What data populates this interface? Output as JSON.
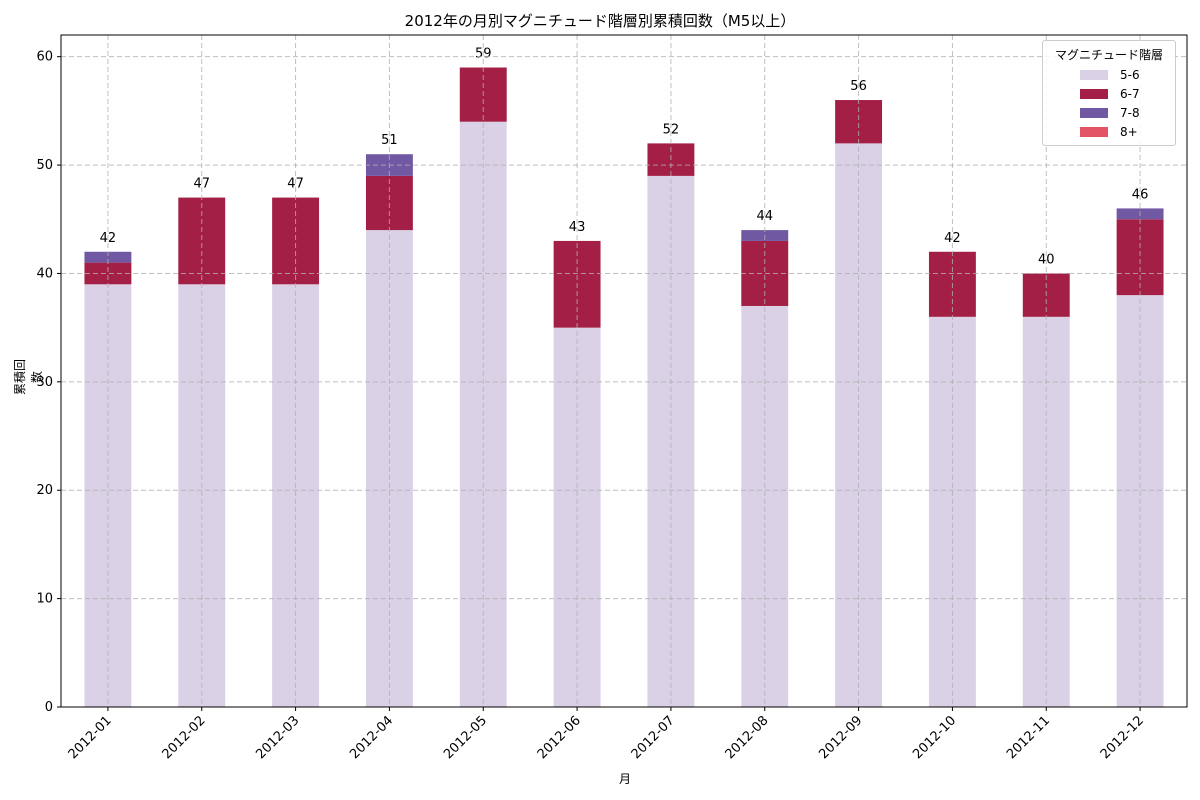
{
  "chart_data": {
    "type": "bar",
    "stacked": true,
    "title": "2012年の月別マグニチュード階層別累積回数（M5以上）",
    "xlabel": "月",
    "ylabel": "累積回数",
    "ylim": [
      0,
      62
    ],
    "yticks": [
      0,
      10,
      20,
      30,
      40,
      50,
      60
    ],
    "grid": true,
    "legend_title": "マグニチュード階層",
    "legend_position": "upper right",
    "categories": [
      "2012-01",
      "2012-02",
      "2012-03",
      "2012-04",
      "2012-05",
      "2012-06",
      "2012-07",
      "2012-08",
      "2012-09",
      "2012-10",
      "2012-11",
      "2012-12"
    ],
    "series": [
      {
        "name": "5-6",
        "color": "#dbd1e6",
        "values": [
          39,
          39,
          39,
          44,
          54,
          35,
          49,
          37,
          52,
          36,
          36,
          38
        ]
      },
      {
        "name": "6-7",
        "color": "#a31f45",
        "values": [
          2,
          8,
          8,
          5,
          5,
          8,
          3,
          6,
          4,
          6,
          4,
          7
        ]
      },
      {
        "name": "7-8",
        "color": "#7158a3",
        "values": [
          1,
          0,
          0,
          2,
          0,
          0,
          0,
          1,
          0,
          0,
          0,
          1
        ]
      },
      {
        "name": "8+",
        "color": "#e35466",
        "values": [
          0,
          0,
          0,
          0,
          0,
          0,
          0,
          0,
          0,
          0,
          0,
          0
        ]
      }
    ],
    "totals": [
      42,
      47,
      47,
      51,
      59,
      43,
      52,
      44,
      56,
      42,
      40,
      46
    ]
  },
  "title": "2012年の月別マグニチュード階層別累積回数（M5以上）",
  "xlabel": "月",
  "ylabel": "累積回数",
  "legend": {
    "title": "マグニチュード階層",
    "items": [
      {
        "label": "5-6",
        "color": "#dbd1e6"
      },
      {
        "label": "6-7",
        "color": "#a31f45"
      },
      {
        "label": "7-8",
        "color": "#7158a3"
      },
      {
        "label": "8+",
        "color": "#e35466"
      }
    ]
  }
}
